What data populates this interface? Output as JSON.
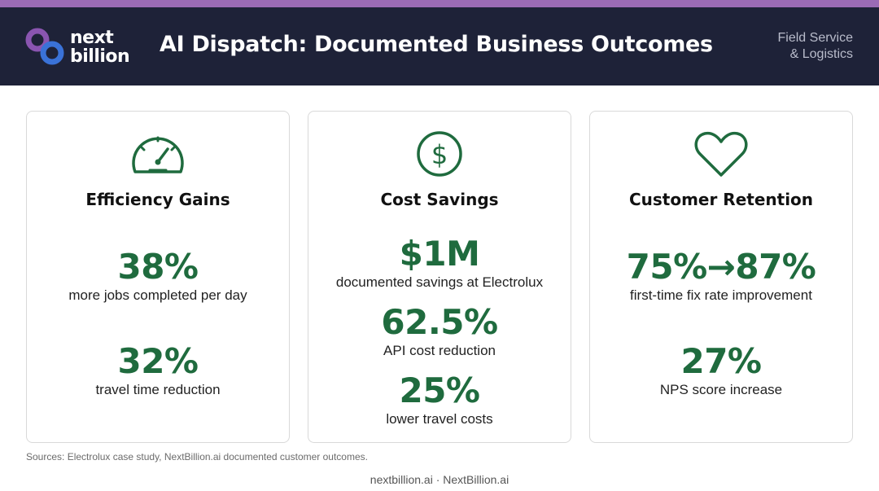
{
  "header": {
    "logo_line1": "next",
    "logo_line2": "billion",
    "title": "AI Dispatch: Documented Business Outcomes",
    "subtitle_line1": "Field Service",
    "subtitle_line2": "& Logistics"
  },
  "colors": {
    "header_bg": "#1e2238",
    "top_stripe": "#9b6bb5",
    "accent_green": "#1f6b3e",
    "logo_purple": "#8a55b0",
    "logo_blue": "#3a72d8"
  },
  "cards": [
    {
      "icon": "speedometer-icon",
      "title": "Efficiency Gains",
      "stats": [
        {
          "value": "38%",
          "label": "more jobs completed per day"
        },
        {
          "value": "32%",
          "label": "travel time reduction"
        }
      ]
    },
    {
      "icon": "dollar-circle-icon",
      "title": "Cost Savings",
      "stats": [
        {
          "value": "$1M",
          "label": "documented savings at Electrolux"
        },
        {
          "value": "62.5%",
          "label": "API cost reduction"
        },
        {
          "value": "25%",
          "label": "lower travel costs"
        }
      ]
    },
    {
      "icon": "heart-icon",
      "title": "Customer Retention",
      "stats": [
        {
          "value": "75%→87%",
          "label": "first-time fix rate improvement"
        },
        {
          "value": "27%",
          "label": "NPS score increase"
        }
      ]
    }
  ],
  "sources": "Sources: Electrolux case study, NextBillion.ai documented customer outcomes.",
  "footer": "nextbillion.ai · NextBillion.ai"
}
